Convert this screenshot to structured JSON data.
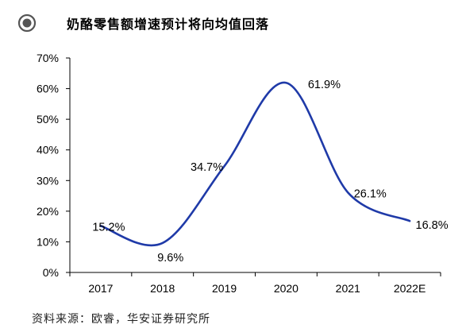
{
  "header": {
    "title": "奶酪零售额增速预计将向均值回落"
  },
  "footer": {
    "source": "资料来源：欧睿，华安证券研究所"
  },
  "colors": {
    "line": "#1f3aa8",
    "axis": "#000000",
    "icon_outer": "#555555",
    "icon_inner": "#555555"
  },
  "chart_data": {
    "type": "line",
    "title": "",
    "xlabel": "",
    "ylabel": "",
    "categories": [
      "2017",
      "2018",
      "2019",
      "2020",
      "2021",
      "2022E"
    ],
    "series": [
      {
        "values": [
          15.2,
          9.6,
          34.7,
          61.9,
          26.1,
          16.8
        ]
      }
    ],
    "data_labels": [
      "15.2%",
      "9.6%",
      "34.7%",
      "61.9%",
      "26.1%",
      "16.8%"
    ],
    "ylim": [
      0,
      70
    ],
    "yticks": [
      0,
      10,
      20,
      30,
      40,
      50,
      60,
      70
    ],
    "ytick_labels": [
      "0%",
      "10%",
      "20%",
      "30%",
      "40%",
      "50%",
      "60%",
      "70%"
    ],
    "smooth": true,
    "grid": false,
    "legend": "none"
  }
}
